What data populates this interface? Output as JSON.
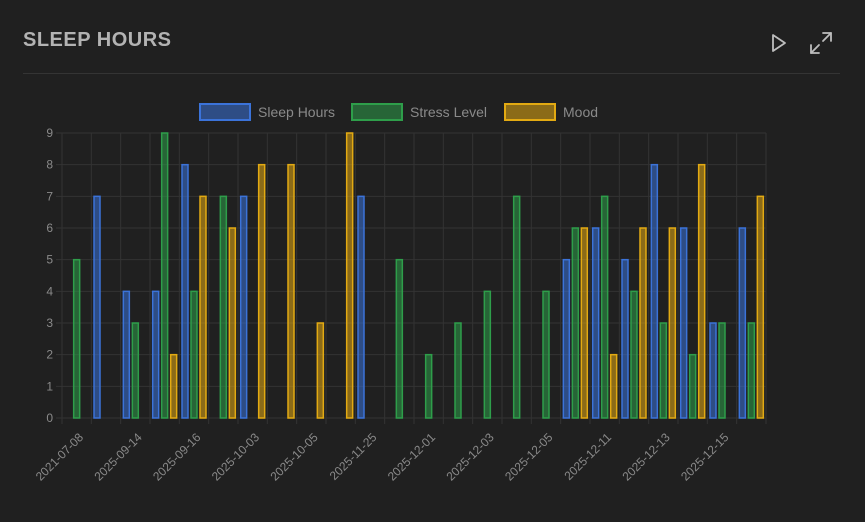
{
  "header": {
    "title": "SLEEP HOURS",
    "play_icon": "play-icon",
    "expand_icon": "expand-icon"
  },
  "colors": {
    "background": "#202020",
    "grid": "#333333",
    "tick_text": "#8a8a8a",
    "sleep_hours": "#3b73d9",
    "stress_level": "#2e9e4a",
    "mood": "#e3aa12"
  },
  "chart_data": {
    "type": "bar",
    "title": "SLEEP HOURS",
    "xlabel": "",
    "ylabel": "",
    "ylim": [
      0,
      9
    ],
    "yticks": [
      0,
      1,
      2,
      3,
      4,
      5,
      6,
      7,
      8,
      9
    ],
    "grid": true,
    "legend_position": "top-center",
    "categories": [
      "2021-07-08",
      "2025-09-14",
      "2025-09-16",
      "2025-10-03",
      "2025-10-05",
      "2025-11-25",
      "2025-12-01",
      "2025-12-03",
      "2025-12-05",
      "2025-12-11",
      "2025-12-13",
      "2025-12-15"
    ],
    "group_slots": 24,
    "series": [
      {
        "name": "Sleep Hours",
        "color": "#3b73d9",
        "points": [
          {
            "slot": 1,
            "value": 7
          },
          {
            "slot": 2,
            "value": 4
          },
          {
            "slot": 3,
            "value": 4
          },
          {
            "slot": 4,
            "value": 8
          },
          {
            "slot": 6,
            "value": 7
          },
          {
            "slot": 10,
            "value": 7
          },
          {
            "slot": 17,
            "value": 5
          },
          {
            "slot": 18,
            "value": 6
          },
          {
            "slot": 19,
            "value": 5
          },
          {
            "slot": 20,
            "value": 8
          },
          {
            "slot": 21,
            "value": 6
          },
          {
            "slot": 22,
            "value": 3
          },
          {
            "slot": 23,
            "value": 6
          }
        ]
      },
      {
        "name": "Stress Level",
        "color": "#2e9e4a",
        "points": [
          {
            "slot": 0,
            "value": 5
          },
          {
            "slot": 2,
            "value": 3
          },
          {
            "slot": 3,
            "value": 9
          },
          {
            "slot": 4,
            "value": 4
          },
          {
            "slot": 5,
            "value": 7
          },
          {
            "slot": 11,
            "value": 5
          },
          {
            "slot": 12,
            "value": 2
          },
          {
            "slot": 13,
            "value": 3
          },
          {
            "slot": 14,
            "value": 4
          },
          {
            "slot": 15,
            "value": 7
          },
          {
            "slot": 16,
            "value": 4
          },
          {
            "slot": 17,
            "value": 6
          },
          {
            "slot": 18,
            "value": 7
          },
          {
            "slot": 19,
            "value": 4
          },
          {
            "slot": 20,
            "value": 3
          },
          {
            "slot": 21,
            "value": 2
          },
          {
            "slot": 22,
            "value": 3
          },
          {
            "slot": 23,
            "value": 3
          }
        ]
      },
      {
        "name": "Mood",
        "color": "#e3aa12",
        "points": [
          {
            "slot": 3,
            "value": 2
          },
          {
            "slot": 4,
            "value": 7
          },
          {
            "slot": 5,
            "value": 6
          },
          {
            "slot": 6,
            "value": 8
          },
          {
            "slot": 7,
            "value": 8
          },
          {
            "slot": 8,
            "value": 3
          },
          {
            "slot": 9,
            "value": 9
          },
          {
            "slot": 17,
            "value": 6
          },
          {
            "slot": 18,
            "value": 2
          },
          {
            "slot": 19,
            "value": 6
          },
          {
            "slot": 20,
            "value": 6
          },
          {
            "slot": 21,
            "value": 8
          },
          {
            "slot": 23,
            "value": 7
          }
        ]
      }
    ]
  }
}
